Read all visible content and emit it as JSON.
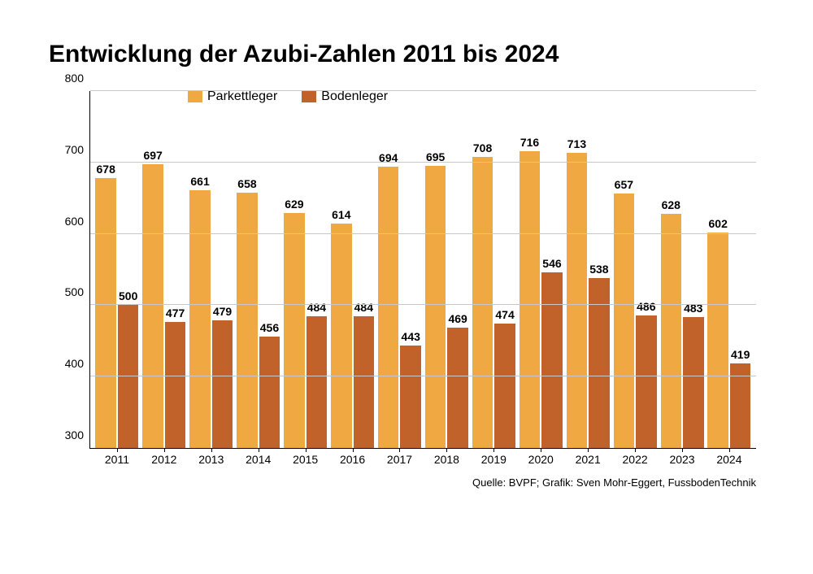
{
  "chart": {
    "type": "bar",
    "title": "Entwicklung der Azubi-Zahlen 2011 bis 2024",
    "title_fontsize": 30,
    "title_fontweight": 700,
    "background_color": "#ffffff",
    "axis_color": "#000000",
    "grid_color": "#c8c8c8",
    "label_fontsize": 14,
    "legend_fontsize": 16,
    "ylim": [
      300,
      800
    ],
    "ytick_step": 100,
    "yticks": [
      300,
      400,
      500,
      600,
      700,
      800
    ],
    "categories": [
      "2011",
      "2012",
      "2013",
      "2014",
      "2015",
      "2016",
      "2017",
      "2018",
      "2019",
      "2020",
      "2021",
      "2022",
      "2023",
      "2024"
    ],
    "series": [
      {
        "name": "Parkettleger",
        "color": "#f0a942",
        "values": [
          678,
          697,
          661,
          658,
          629,
          614,
          694,
          695,
          708,
          716,
          713,
          657,
          628,
          602
        ]
      },
      {
        "name": "Bodenleger",
        "color": "#c0622a",
        "values": [
          500,
          477,
          479,
          456,
          484,
          484,
          443,
          469,
          474,
          546,
          538,
          486,
          483,
          419
        ]
      }
    ],
    "bar_label_fontweight": 700,
    "source": "Quelle: BVPF; Grafik: Sven Mohr-Eggert, FussbodenTechnik"
  }
}
